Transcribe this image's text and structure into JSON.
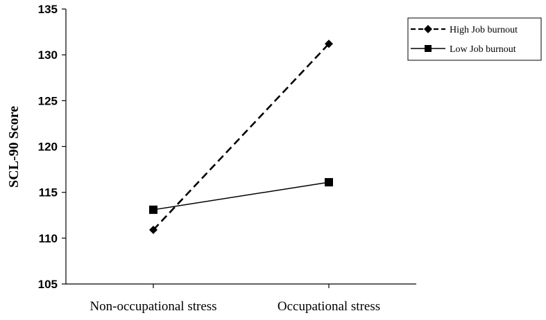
{
  "chart_data": {
    "type": "line",
    "categories": [
      "Non-occupational stress",
      "Occupational stress"
    ],
    "series": [
      {
        "name": "High Job burnout",
        "values": [
          110.9,
          131.2
        ],
        "line_style": "dashed",
        "marker": "diamond",
        "color": "#000000"
      },
      {
        "name": "Low Job burnout",
        "values": [
          113.1,
          116.1
        ],
        "line_style": "solid",
        "marker": "square",
        "color": "#000000"
      }
    ],
    "ylabel": "SCL-90 Score",
    "xlabel": "",
    "ylim": [
      105,
      135
    ],
    "yticks": [
      105,
      110,
      115,
      120,
      125,
      130,
      135
    ],
    "grid": false,
    "legend_position": "top-right"
  }
}
